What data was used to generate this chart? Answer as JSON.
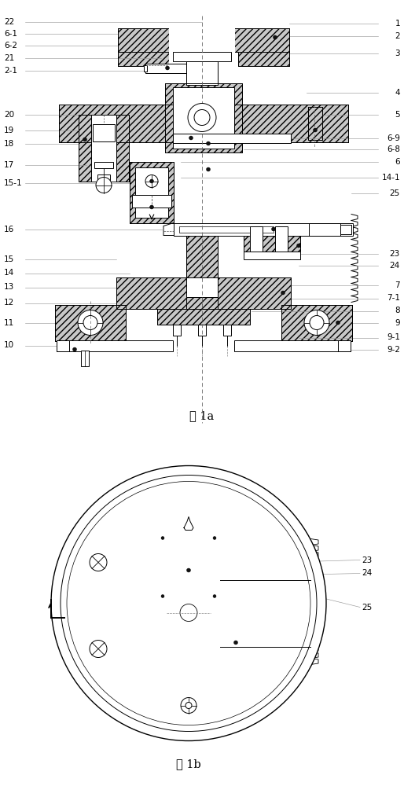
{
  "fig_width": 5.14,
  "fig_height": 10.0,
  "dpi": 100,
  "bg_color": "#ffffff",
  "line_color": "#000000",
  "label_color": "#000000",
  "leader_color": "#999999",
  "fig1a_caption": "图 1a",
  "fig1b_caption": "图 1b",
  "left_labels": [
    "22",
    "6-1",
    "6-2",
    "21",
    "2-1",
    "20",
    "19",
    "18",
    "17",
    "15-1",
    "16",
    "15",
    "14",
    "13",
    "12",
    "11",
    "10"
  ],
  "right_labels": [
    "1",
    "2",
    "3",
    "4",
    "5",
    "6-9",
    "6-8",
    "6",
    "14-1",
    "25",
    "23",
    "24",
    "7",
    "7-1",
    "8",
    "9",
    "9-1",
    "9-2"
  ],
  "hatch_pattern": "////",
  "hatch_color": "#c8c8c8"
}
